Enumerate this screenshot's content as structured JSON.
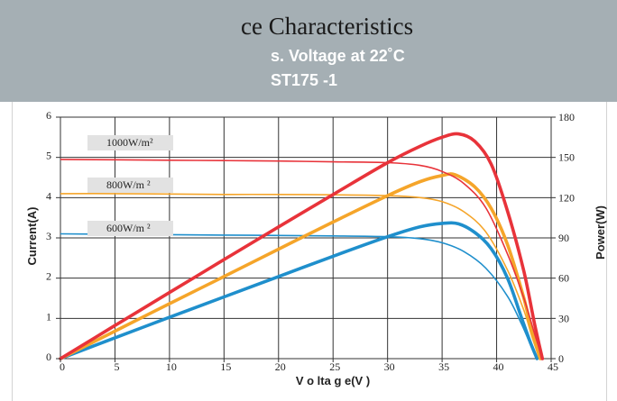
{
  "header": {
    "title": "ce Characteristics",
    "subtitle1": "s. Voltage at 22˚C",
    "subtitle2": "ST175 -1"
  },
  "colors": {
    "banner": "#a5afb4",
    "series_1000": "#e8333a",
    "series_800": "#f5a52a",
    "series_600": "#1f8fcc",
    "label_box": "#e2e2e2"
  },
  "chart_data": {
    "type": "line",
    "xlabel": "V o lta g e(V )",
    "ylabel_left": "Current(A)",
    "ylabel_right": "Power(W)",
    "xlim": [
      0,
      45
    ],
    "ylim_left": [
      0,
      6
    ],
    "ylim_right": [
      0,
      180
    ],
    "x_ticks": [
      0,
      5,
      10,
      15,
      20,
      25,
      30,
      35,
      40,
      45
    ],
    "y_left_ticks": [
      0,
      1,
      2,
      3,
      4,
      5,
      6
    ],
    "y_right_ticks": [
      0,
      30,
      60,
      90,
      120,
      150,
      180
    ],
    "grid": true,
    "series": [
      {
        "name": "1000W/m²",
        "irradiance_label": "1000W/m²",
        "color": "#e8333a",
        "current": {
          "x": [
            0,
            5,
            10,
            15,
            20,
            25,
            30,
            33,
            35,
            37,
            39,
            41,
            42.5,
            43.5,
            44.2
          ],
          "y": [
            4.95,
            4.94,
            4.93,
            4.92,
            4.91,
            4.89,
            4.87,
            4.8,
            4.65,
            4.35,
            3.75,
            2.6,
            1.5,
            0.6,
            0
          ]
        },
        "power": {
          "x": [
            0,
            5,
            10,
            15,
            20,
            25,
            30,
            33,
            35,
            36.5,
            38,
            39.5,
            41,
            42.5,
            43.5,
            44.2
          ],
          "y": [
            0,
            24.7,
            49.3,
            73.8,
            98.2,
            122.3,
            146.1,
            158.4,
            165,
            167.5,
            162,
            145,
            110,
            65,
            25,
            0
          ]
        }
      },
      {
        "name": "800W/m²",
        "irradiance_label": "800W/m ²",
        "color": "#f5a52a",
        "current": {
          "x": [
            0,
            5,
            10,
            15,
            20,
            25,
            30,
            33,
            35,
            37,
            39,
            41,
            42.5,
            43.3,
            44
          ],
          "y": [
            4.1,
            4.1,
            4.09,
            4.08,
            4.08,
            4.07,
            4.05,
            4.0,
            3.9,
            3.65,
            3.15,
            2.2,
            1.2,
            0.5,
            0
          ]
        },
        "power": {
          "x": [
            0,
            5,
            10,
            15,
            20,
            25,
            30,
            33,
            35,
            36.2,
            38,
            39.5,
            41,
            42.5,
            43.3,
            44
          ],
          "y": [
            0,
            20.5,
            41,
            61.2,
            81.6,
            101.8,
            121.5,
            132,
            136.5,
            137,
            128,
            112,
            85,
            45,
            18,
            0
          ]
        }
      },
      {
        "name": "600W/m²",
        "irradiance_label": "600W/m ²",
        "color": "#1f8fcc",
        "current": {
          "x": [
            0,
            5,
            10,
            15,
            20,
            25,
            30,
            33,
            35,
            37,
            39,
            41,
            42.3,
            43.1,
            43.7
          ],
          "y": [
            3.1,
            3.09,
            3.08,
            3.07,
            3.06,
            3.05,
            3.03,
            2.98,
            2.88,
            2.66,
            2.25,
            1.55,
            0.85,
            0.35,
            0
          ]
        },
        "power": {
          "x": [
            0,
            5,
            10,
            15,
            20,
            25,
            30,
            33,
            35,
            36.5,
            38,
            39.5,
            41,
            42.3,
            43.1,
            43.7
          ],
          "y": [
            0,
            15.5,
            30.8,
            46,
            61.2,
            76.3,
            90.9,
            98.3,
            100.8,
            100.5,
            94,
            82,
            60,
            30,
            12,
            0
          ]
        }
      }
    ]
  }
}
